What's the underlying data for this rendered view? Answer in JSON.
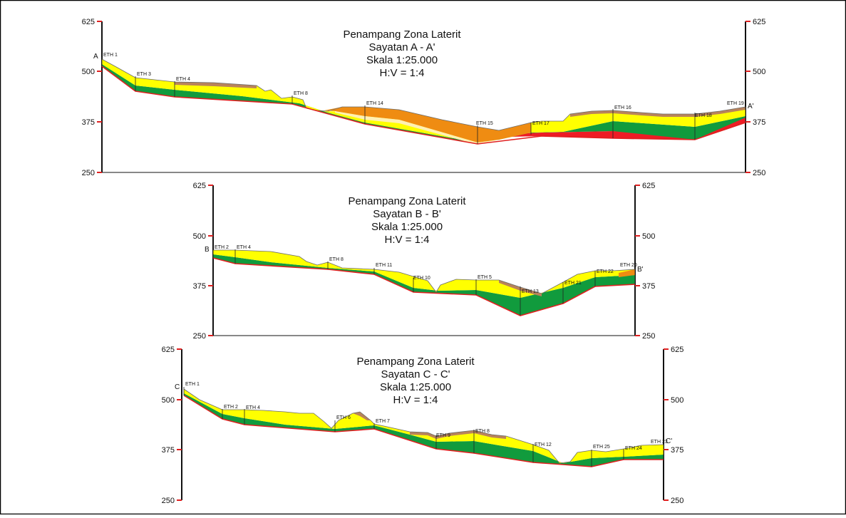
{
  "axis": {
    "ticks": [
      625,
      500,
      375,
      250
    ]
  },
  "colors": {
    "topsoil": "#b9835a",
    "limonite_orange": "#ef8c12",
    "limonite_yellow": "#ffff00",
    "saprolite_green": "#119b3d",
    "bedrock_red": "#ee1c25",
    "cream": "#fff0b4",
    "base_line": "#e02020"
  },
  "sections": [
    {
      "id": "A",
      "title_lines": [
        "Penampang Zona Laterit",
        "Sayatan A - A'",
        "Skala 1:25.000",
        "H:V = 1:4"
      ],
      "start_label": "A",
      "end_label": "A'",
      "eth_labels": [
        "ETH 1",
        "ETH 3",
        "ETH 4",
        "ETH 8",
        "ETH 14",
        "ETH 15",
        "ETH 17",
        "ETH 16",
        "ETH 18",
        "ETH 19"
      ]
    },
    {
      "id": "B",
      "title_lines": [
        "Penampang Zona Laterit",
        "Sayatan B - B'",
        "Skala 1:25.000",
        "H:V = 1:4"
      ],
      "start_label": "B",
      "end_label": "B'",
      "eth_labels": [
        "ETH 2",
        "ETH 4",
        "ETH 8",
        "ETH 11",
        "ETH 10",
        "ETH 5",
        "ETH 13",
        "ETH 21",
        "ETH 22",
        "ETH 20"
      ]
    },
    {
      "id": "C",
      "title_lines": [
        "Penampang Zona Laterit",
        "Sayatan C - C'",
        "Skala 1:25.000",
        "H:V = 1:4"
      ],
      "start_label": "C",
      "end_label": "C'",
      "eth_labels": [
        "ETH 1",
        "ETH 2",
        "ETH 4",
        "ETH 6",
        "ETH 7",
        "ETH 9",
        "ETH 8",
        "ETH 12",
        "ETH 25",
        "ETH 24",
        "ETH 23"
      ]
    }
  ]
}
